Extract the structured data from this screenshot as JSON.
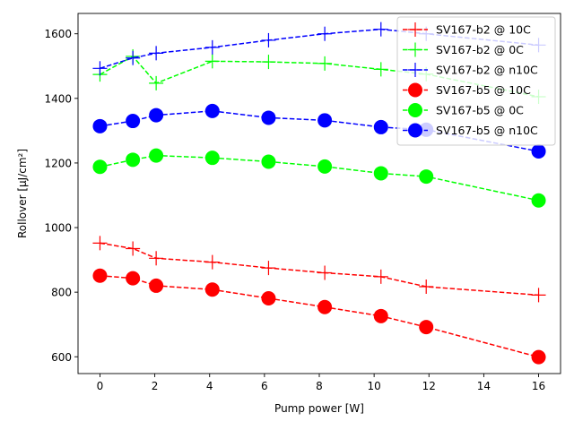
{
  "chart_data": {
    "type": "line",
    "xlabel": "Pump power [W]",
    "ylabel": "Rollover [μJ/cm²]",
    "xlim": [
      -0.8,
      16.8
    ],
    "ylim": [
      548,
      1663
    ],
    "xticks": [
      0,
      2,
      4,
      6,
      8,
      10,
      12,
      14,
      16
    ],
    "yticks": [
      600,
      800,
      1000,
      1200,
      1400,
      1600
    ],
    "grid": false,
    "legend_position": "upper-right",
    "series": [
      {
        "name": "SV167-b2 @ 10C",
        "color": "#ff0000",
        "marker": "plus",
        "linestyle": "dashed",
        "x": [
          0,
          1.2,
          2.05,
          4.1,
          6.15,
          8.2,
          10.25,
          11.9,
          16
        ],
        "y": [
          952,
          935,
          905,
          893,
          875,
          860,
          848,
          817,
          791
        ]
      },
      {
        "name": "SV167-b2 @ 0C",
        "color": "#00ff00",
        "marker": "plus",
        "linestyle": "dashed",
        "x": [
          0,
          1.2,
          2.05,
          4.1,
          6.15,
          8.2,
          10.25,
          11.9,
          16
        ],
        "y": [
          1474,
          1530,
          1447,
          1515,
          1513,
          1508,
          1490,
          1475,
          1405
        ]
      },
      {
        "name": "SV167-b2 @ n10C",
        "color": "#0000ff",
        "marker": "plus",
        "linestyle": "dashed",
        "x": [
          0,
          1.2,
          2.05,
          4.1,
          6.15,
          8.2,
          10.25,
          11.9,
          16
        ],
        "y": [
          1493,
          1525,
          1540,
          1558,
          1580,
          1600,
          1614,
          1600,
          1565
        ]
      },
      {
        "name": "SV167-b5 @ 10C",
        "color": "#ff0000",
        "marker": "circle",
        "linestyle": "dashed",
        "x": [
          0,
          1.2,
          2.05,
          4.1,
          6.15,
          8.2,
          10.25,
          11.9,
          16
        ],
        "y": [
          851,
          843,
          820,
          808,
          781,
          754,
          726,
          692,
          599
        ]
      },
      {
        "name": "SV167-b5 @ 0C",
        "color": "#00ff00",
        "marker": "circle",
        "linestyle": "dashed",
        "x": [
          0,
          1.2,
          2.05,
          4.1,
          6.15,
          8.2,
          10.25,
          11.9,
          16
        ],
        "y": [
          1188,
          1210,
          1223,
          1216,
          1204,
          1189,
          1168,
          1158,
          1084
        ]
      },
      {
        "name": "SV167-b5 @ n10C",
        "color": "#0000ff",
        "marker": "circle",
        "linestyle": "dashed",
        "x": [
          0,
          1.2,
          2.05,
          4.1,
          6.15,
          8.2,
          10.25,
          11.9,
          16
        ],
        "y": [
          1314,
          1330,
          1348,
          1361,
          1340,
          1332,
          1311,
          1303,
          1236
        ]
      }
    ]
  }
}
